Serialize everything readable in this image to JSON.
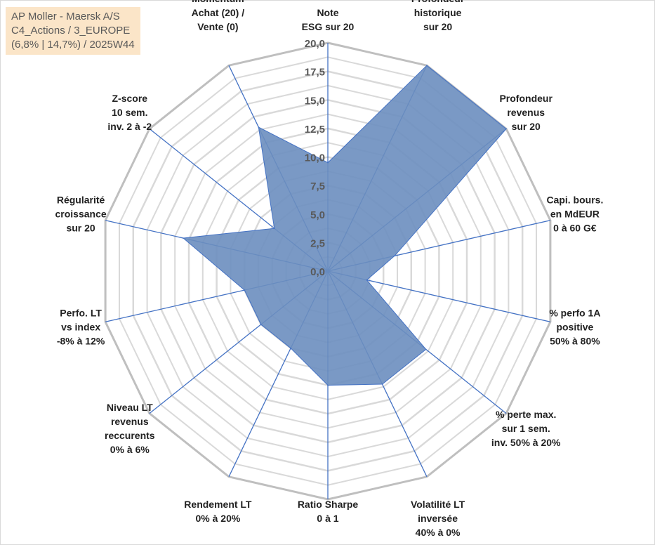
{
  "header": {
    "line1": "AP Moller - Maersk A/S",
    "line2": "C4_Actions / 3_EUROPE",
    "line3": "(6,8% | 14,7%) / 2025W44"
  },
  "colors": {
    "series_fill": "#6c8ebf",
    "series_stroke": "#4472c4",
    "spoke": "#4472c4",
    "outer_ring": "#bfbfbf",
    "inner_ring": "#d9d9d9",
    "header_bg": "#fbe5c8"
  },
  "chart_data": {
    "type": "radar",
    "title": "",
    "rmin": 0,
    "rmax": 20,
    "tick_step": 2.5,
    "tick_labels": [
      "0,0",
      "2,5",
      "5,0",
      "7,5",
      "10,0",
      "12,5",
      "15,0",
      "17,5",
      "20,0"
    ],
    "ring_step": 1.25,
    "grid": true,
    "legend": "none",
    "axes": [
      [
        "Note",
        "ESG sur 20"
      ],
      [
        "Profondeur",
        "historique",
        "sur 20"
      ],
      [
        "Profondeur",
        "revenus",
        "sur 20"
      ],
      [
        "Capi. bours.",
        "en MdEUR",
        "0 à 60 G€"
      ],
      [
        "% perfo 1A",
        "positive",
        "50% à 80%"
      ],
      [
        "% perte max.",
        "sur 1 sem.",
        "inv. 50% à 20%"
      ],
      [
        "Volatilité LT",
        "inversée",
        "40% à 0%"
      ],
      [
        "Ratio Sharpe",
        "0 à 1"
      ],
      [
        "Rendement LT",
        "0% à 20%"
      ],
      [
        "Niveau LT",
        "revenus",
        "reccurents",
        "0% à 6%"
      ],
      [
        "Perfo. LT",
        "vs index",
        "-8% à 12%"
      ],
      [
        "Régularité",
        "croissance",
        "sur 20"
      ],
      [
        "Z-score",
        "10 sem.",
        "inv. 2 à -2"
      ],
      [
        "Momentum",
        "Achat (20) /",
        "Vente (0)"
      ]
    ],
    "series": [
      {
        "values": [
          9.5,
          20.0,
          20.0,
          6.0,
          3.5,
          11.0,
          11.0,
          10.0,
          7.5,
          7.5,
          7.5,
          13.0,
          6.0,
          14.0
        ]
      }
    ]
  }
}
